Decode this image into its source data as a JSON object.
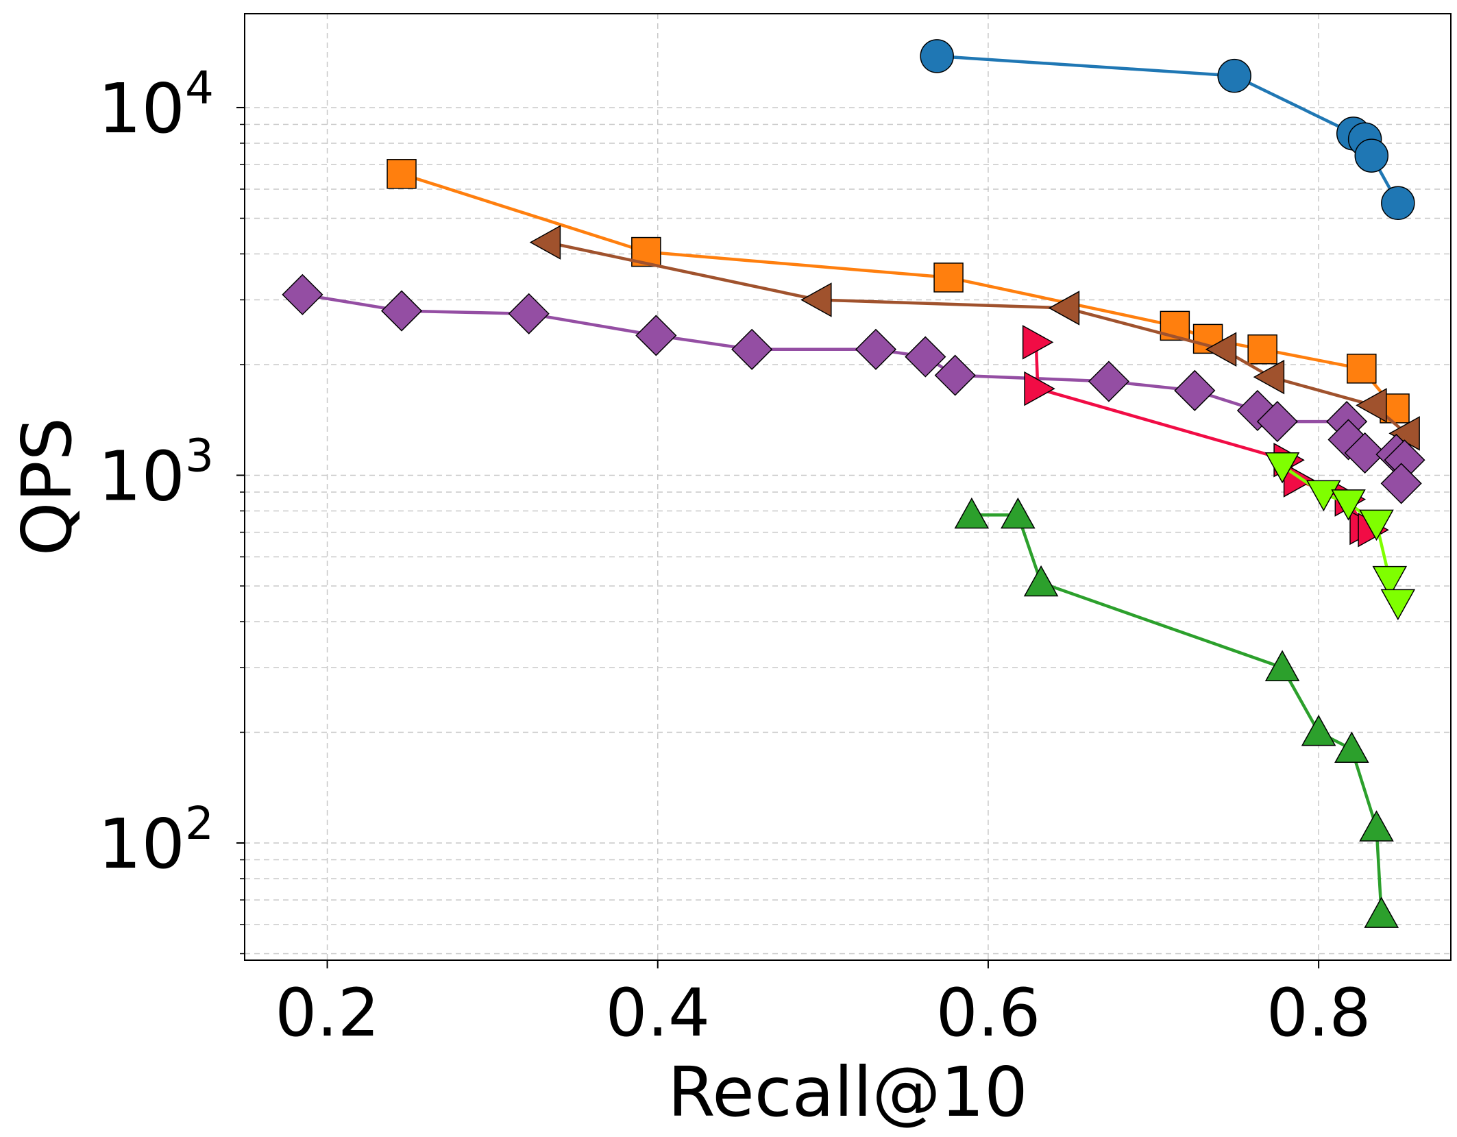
{
  "chart_data": {
    "type": "line",
    "title": "",
    "xlabel": "Recall@10",
    "ylabel": "QPS",
    "xscale": "linear",
    "yscale": "log",
    "xlim": [
      0.15,
      0.88
    ],
    "ylim": [
      48,
      18000
    ],
    "grid": true,
    "x_ticks": [
      {
        "value": 0.2,
        "label": "0.2"
      },
      {
        "value": 0.4,
        "label": "0.4"
      },
      {
        "value": 0.6,
        "label": "0.6"
      },
      {
        "value": 0.8,
        "label": "0.8"
      }
    ],
    "y_ticks": [
      {
        "value": 100,
        "base": "10",
        "exp": "2"
      },
      {
        "value": 1000,
        "base": "10",
        "exp": "3"
      },
      {
        "value": 10000,
        "base": "10",
        "exp": "4"
      }
    ],
    "series": [
      {
        "name": "blue-circle",
        "color": "#1f77b4",
        "marker": "circle",
        "x": [
          0.569,
          0.749,
          0.821,
          0.828,
          0.832,
          0.848
        ],
        "y": [
          13800,
          12200,
          8500,
          8200,
          7400,
          5500
        ]
      },
      {
        "name": "orange-square",
        "color": "#ff7f0e",
        "marker": "square",
        "x": [
          0.245,
          0.393,
          0.576,
          0.713,
          0.733,
          0.766,
          0.826,
          0.846
        ],
        "y": [
          6600,
          4050,
          3450,
          2550,
          2350,
          2200,
          1950,
          1520
        ]
      },
      {
        "name": "brown-triangle-left",
        "color": "#a0522d",
        "marker": "triangle-left",
        "x": [
          0.333,
          0.497,
          0.647,
          0.742,
          0.771,
          0.833,
          0.853
        ],
        "y": [
          4300,
          3000,
          2850,
          2200,
          1850,
          1550,
          1300
        ]
      },
      {
        "name": "purple-diamond",
        "color": "#944ea3",
        "marker": "diamond",
        "x": [
          0.185,
          0.245,
          0.322,
          0.399,
          0.457,
          0.532,
          0.562,
          0.58,
          0.673,
          0.725,
          0.763,
          0.775,
          0.817,
          0.818,
          0.828,
          0.847,
          0.852,
          0.85
        ],
        "y": [
          3100,
          2800,
          2750,
          2400,
          2200,
          2200,
          2100,
          1870,
          1800,
          1700,
          1500,
          1400,
          1400,
          1250,
          1150,
          1140,
          1100,
          950
        ]
      },
      {
        "name": "red-triangle-right",
        "color": "#f10c45",
        "marker": "triangle-right",
        "x": [
          0.629,
          0.63,
          0.781,
          0.787,
          0.818,
          0.827,
          0.832
        ],
        "y": [
          2300,
          1720,
          1100,
          970,
          860,
          720,
          710
        ]
      },
      {
        "name": "lime-triangle-down",
        "color": "#7fff00",
        "marker": "triangle-down",
        "x": [
          0.778,
          0.803,
          0.818,
          0.835,
          0.843,
          0.848
        ],
        "y": [
          1060,
          890,
          840,
          740,
          520,
          450
        ]
      },
      {
        "name": "green-triangle-up",
        "color": "#2ca02c",
        "marker": "triangle-up",
        "x": [
          0.59,
          0.618,
          0.632,
          0.778,
          0.8,
          0.82,
          0.835,
          0.838
        ],
        "y": [
          780,
          780,
          510,
          300,
          200,
          180,
          110,
          64
        ]
      }
    ]
  }
}
